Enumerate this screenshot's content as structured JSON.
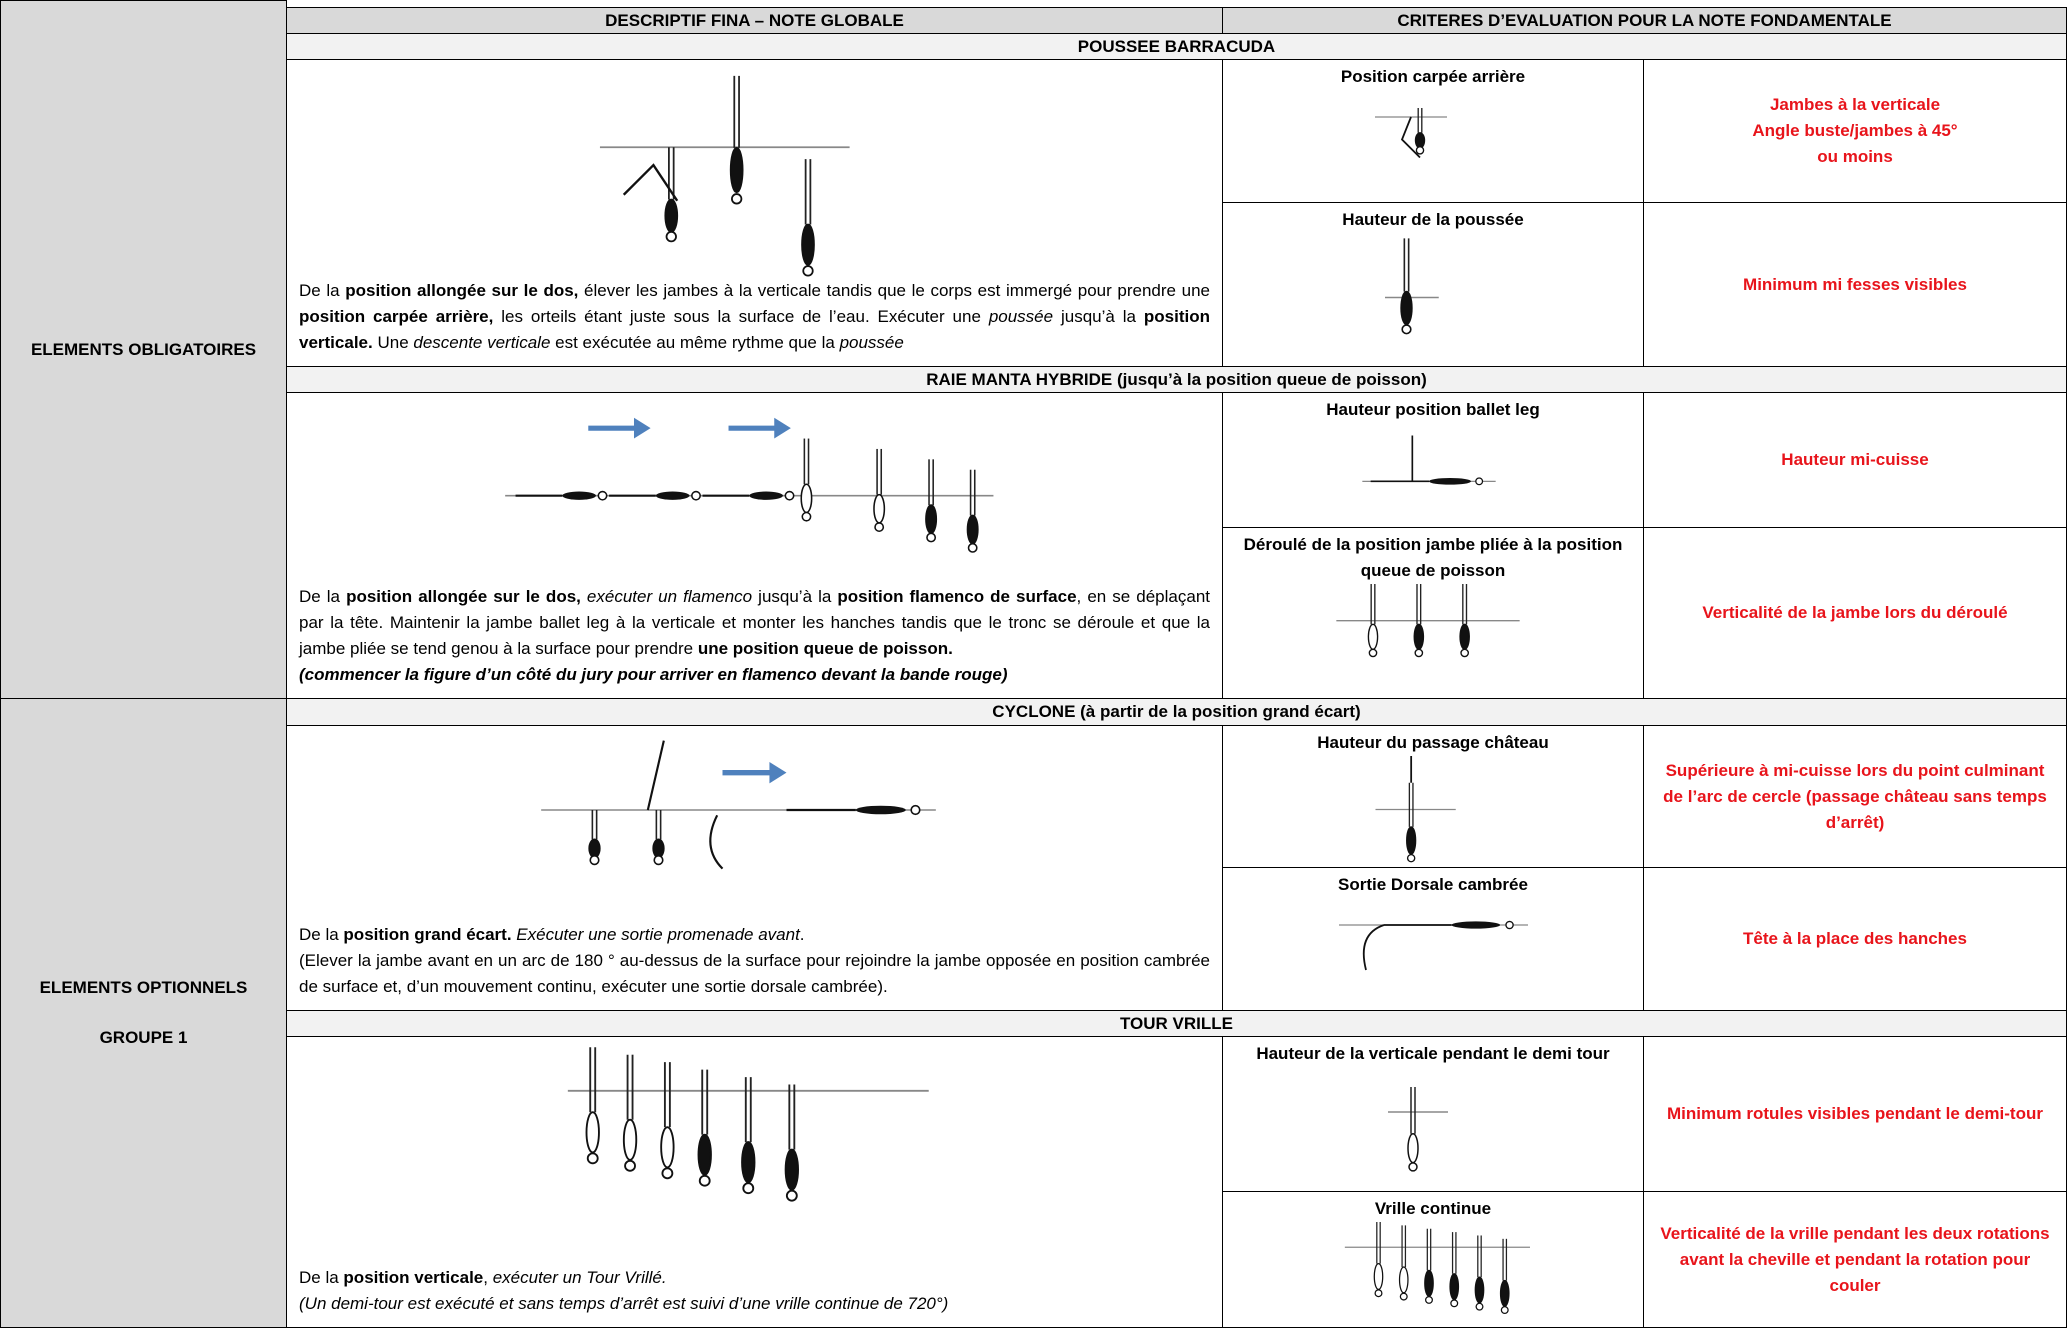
{
  "header": {
    "description_column": "DESCRIPTIF FINA – NOTE GLOBALE",
    "criteria_column": "CRITERES D’EVALUATION POUR LA NOTE FONDAMENTALE"
  },
  "groups": [
    {
      "label": [
        "ELEMENTS OBLIGATOIRES"
      ]
    },
    {
      "label": [
        "ELEMENTS OPTIONNELS",
        "GROUPE 1"
      ]
    }
  ],
  "figures": [
    {
      "title": "POUSSEE BARRACUDA",
      "description": [
        [
          {
            "text": "De la "
          },
          {
            "text": "position allongée sur le dos,",
            "bold": true
          },
          {
            "text": " élever les jambes à la verticale tandis que le corps est immergé pour prendre une "
          },
          {
            "text": "position carpée arrière,",
            "bold": true
          },
          {
            "text": " les orteils étant juste sous la surface de l’eau. Exécuter une "
          },
          {
            "text": "poussée",
            "italic": true
          },
          {
            "text": "   jusqu’à la "
          },
          {
            "text": "position verticale.",
            "bold": true
          },
          {
            "text": " Une "
          },
          {
            "text": "descente verticale",
            "italic": true
          },
          {
            "text": " est exécutée au même rythme que la "
          },
          {
            "text": "poussée",
            "italic": true
          }
        ]
      ],
      "criteria": [
        {
          "name": "Position carpée arrière",
          "requirement": "Jambes à la verticale\nAngle buste/jambes à 45°\nou moins"
        },
        {
          "name": "Hauteur de la poussée",
          "requirement": "Minimum mi fesses visibles"
        }
      ]
    },
    {
      "title": "RAIE MANTA HYBRIDE (jusqu’à la position queue de poisson)",
      "description": [
        [
          {
            "text": "De la "
          },
          {
            "text": "position allongée sur le dos,",
            "bold": true
          },
          {
            "text": " exécuter un flamenco",
            "italic": true
          },
          {
            "text": " jusqu’à la "
          },
          {
            "text": "position flamenco de surface",
            "bold": true
          },
          {
            "text": ", en se déplaçant par la tête. Maintenir la jambe ballet leg à la verticale et monter les hanches tandis que le tronc se déroule et que la jambe pliée se tend genou à la surface pour prendre "
          },
          {
            "text": "une position queue de poisson.",
            "bold": true
          }
        ],
        [
          {
            "text": "(commencer la figure d’un côté du jury pour arriver en flamenco devant la bande rouge)",
            "bold": true,
            "italic": true
          }
        ]
      ],
      "criteria": [
        {
          "name": "Hauteur position ballet leg",
          "requirement": "Hauteur mi-cuisse"
        },
        {
          "name": "Déroulé de la position jambe pliée à la position queue de poisson",
          "requirement": "Verticalité de la jambe lors du déroulé"
        }
      ]
    },
    {
      "title": "CYCLONE (à partir de la position grand écart)",
      "description": [
        [
          {
            "text": "De la "
          },
          {
            "text": "position grand écart.",
            "bold": true
          },
          {
            "text": " Exécuter une sortie promenade avant",
            "italic": true
          },
          {
            "text": "."
          }
        ],
        [
          {
            "text": "(Elever la jambe avant en un arc de 180 ° au-dessus de la surface pour rejoindre la jambe opposée en position cambrée de surface et, d’un mouvement continu, exécuter une sortie dorsale cambrée)."
          }
        ]
      ],
      "criteria": [
        {
          "name": "Hauteur du passage château",
          "requirement": "Supérieure à mi-cuisse lors du point culminant de l’arc de cercle (passage château sans temps d’arrêt)"
        },
        {
          "name": "Sortie Dorsale cambrée",
          "requirement": "Tête à la place des hanches"
        }
      ]
    },
    {
      "title": "TOUR VRILLE",
      "description": [
        [
          {
            "text": "De la "
          },
          {
            "text": "position verticale",
            "bold": true
          },
          {
            "text": ", "
          },
          {
            "text": "exécuter un Tour Vrillé.",
            "italic": true
          }
        ],
        [
          {
            "text": "(Un demi-tour est exécuté et sans temps d’arrêt est suivi d’une vrille continue de 720°)",
            "italic": true
          }
        ]
      ],
      "criteria": [
        {
          "name": "Hauteur de la verticale pendant le demi tour",
          "requirement": "Minimum rotules visibles pendant le demi-tour"
        },
        {
          "name": "Vrille continue",
          "requirement": "Verticalité de la vrille pendant les deux rotations avant la cheville et pendant la rotation pour couler"
        }
      ]
    }
  ]
}
